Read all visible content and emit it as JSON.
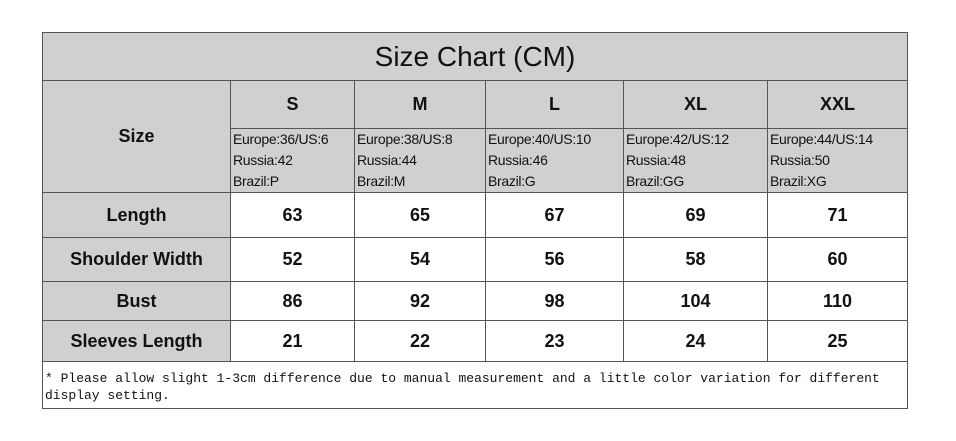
{
  "title": "Size Chart (CM)",
  "header": {
    "label": "Size",
    "sizes": [
      {
        "name": "S",
        "lines": [
          "Europe:36/US:6",
          "Russia:42",
          "Brazil:P"
        ]
      },
      {
        "name": "M",
        "lines": [
          "Europe:38/US:8",
          "Russia:44",
          "Brazil:M"
        ]
      },
      {
        "name": "L",
        "lines": [
          "Europe:40/US:10",
          "Russia:46",
          "Brazil:G"
        ]
      },
      {
        "name": "XL",
        "lines": [
          "Europe:42/US:12",
          "Russia:48",
          "Brazil:GG"
        ]
      },
      {
        "name": "XXL",
        "lines": [
          "Europe:44/US:14",
          "Russia:50",
          "Brazil:XG"
        ]
      }
    ]
  },
  "rows": [
    {
      "label": "Length",
      "values": [
        63,
        65,
        67,
        69,
        71
      ]
    },
    {
      "label": "Shoulder Width",
      "values": [
        52,
        54,
        56,
        58,
        60
      ]
    },
    {
      "label": "Bust",
      "values": [
        86,
        92,
        98,
        104,
        110
      ]
    },
    {
      "label": "Sleeves Length",
      "values": [
        21,
        22,
        23,
        24,
        25
      ]
    }
  ],
  "note": "* Please allow slight 1-3cm difference due to manual measurement and a little color variation for different display setting."
}
